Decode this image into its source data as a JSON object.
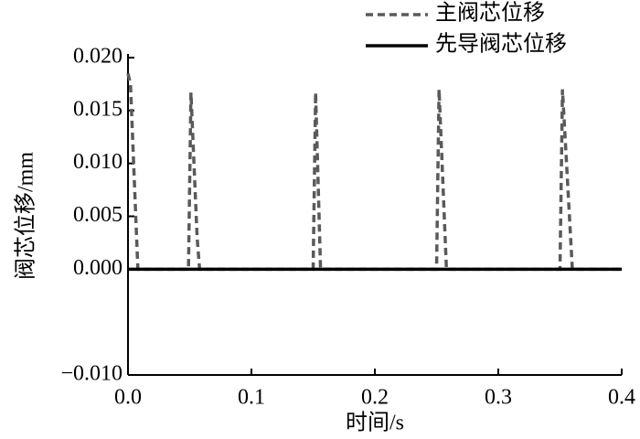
{
  "chart_data": {
    "type": "line",
    "x_label": "时间/s",
    "y_label": "阀芯位移/mm",
    "xlim": [
      0,
      0.4
    ],
    "xticks": [
      {
        "value": 0,
        "label": "0.0"
      },
      0.1,
      0.2,
      0.3,
      0.4
    ],
    "ylim": [
      -0.01,
      0.02
    ],
    "yticks": [
      {
        "value": -0.01,
        "label": "−0.010"
      },
      {
        "value": 0,
        "label": "0.000"
      },
      0.005,
      {
        "value": 0.01,
        "label": "0.010"
      },
      0.015,
      {
        "value": 0.02,
        "label": "0.020"
      }
    ],
    "legend": "top-right",
    "series": [
      {
        "name": "主阀芯位移",
        "color": "#5a5a5a",
        "dash": true,
        "x": [
          0,
          0.002,
          0.008,
          0.049,
          0.051,
          0.056,
          0.058,
          0.15,
          0.152,
          0.156,
          0.25,
          0.252,
          0.258,
          0.35,
          0.352,
          0.36,
          0.4
        ],
        "values": [
          0.0185,
          0.0175,
          0,
          0,
          0.0167,
          0.003,
          0,
          0,
          0.0167,
          0,
          0,
          0.017,
          0,
          0,
          0.017,
          0,
          0
        ]
      },
      {
        "name": "先导阀芯位移",
        "color": "#000000",
        "dash": false,
        "x": [
          0,
          0.4
        ],
        "values": [
          0,
          0
        ]
      }
    ]
  }
}
